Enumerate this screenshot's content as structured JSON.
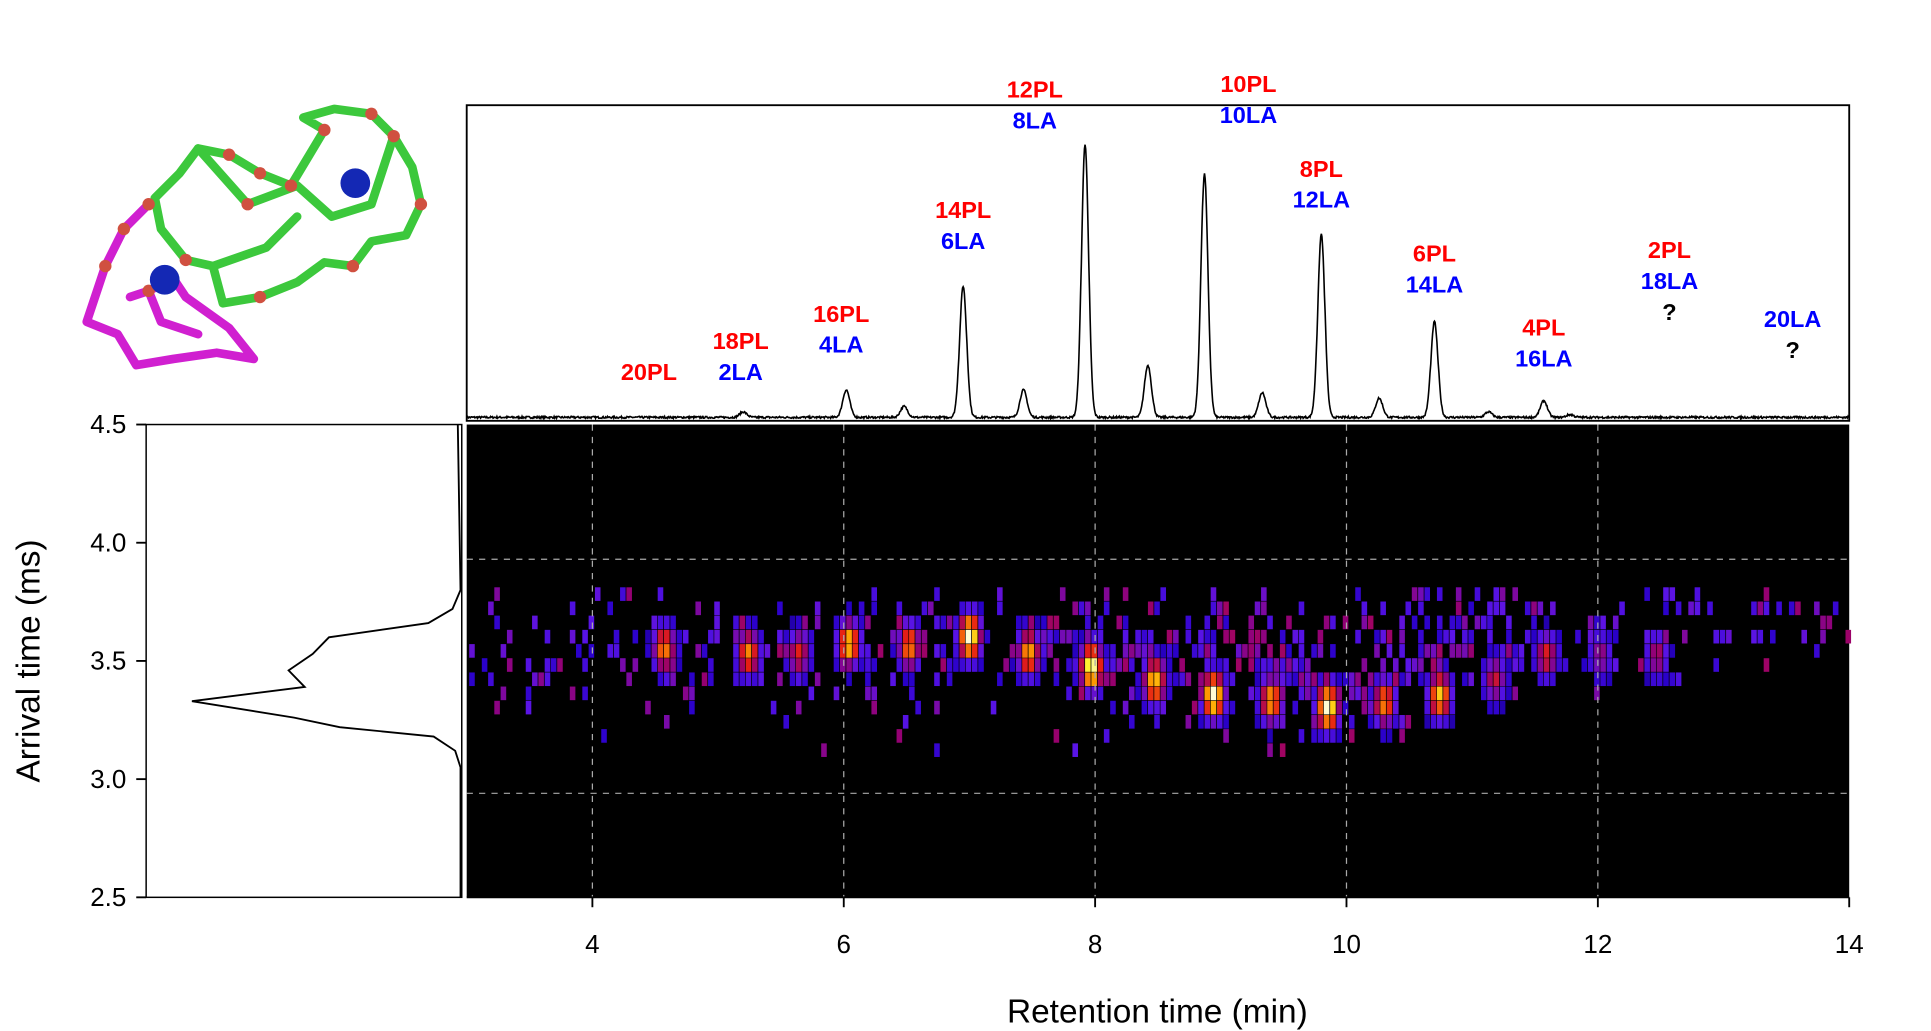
{
  "colors": {
    "pl": "#ff0000",
    "la": "#0000ff",
    "unknown": "#000000",
    "heatmap_bg": "#000000"
  },
  "chart_data": [
    {
      "type": "line",
      "panel": "top chromatogram",
      "xlim": [
        3,
        14
      ],
      "ylim": [
        0,
        100
      ],
      "x_unit": "min",
      "peaks": [
        {
          "rt": 5.2,
          "intensity": 2
        },
        {
          "rt": 6.02,
          "intensity": 10
        },
        {
          "rt": 6.48,
          "intensity": 4
        },
        {
          "rt": 6.95,
          "intensity": 48
        },
        {
          "rt": 7.43,
          "intensity": 10
        },
        {
          "rt": 7.92,
          "intensity": 100
        },
        {
          "rt": 8.42,
          "intensity": 19
        },
        {
          "rt": 8.87,
          "intensity": 89
        },
        {
          "rt": 9.33,
          "intensity": 9
        },
        {
          "rt": 9.8,
          "intensity": 67
        },
        {
          "rt": 10.26,
          "intensity": 7
        },
        {
          "rt": 10.7,
          "intensity": 35
        },
        {
          "rt": 11.13,
          "intensity": 2
        },
        {
          "rt": 11.57,
          "intensity": 6
        },
        {
          "rt": 11.78,
          "intensity": 1
        }
      ],
      "annotations": [
        {
          "rt": 4.45,
          "level": 14,
          "pl": "20PL",
          "la": "",
          "q": ""
        },
        {
          "rt": 5.18,
          "level": 14,
          "pl": "18PL",
          "la": "2LA",
          "q": ""
        },
        {
          "rt": 5.98,
          "level": 24,
          "pl": "16PL",
          "la": "4LA",
          "q": ""
        },
        {
          "rt": 6.95,
          "level": 62,
          "pl": "14PL",
          "la": "6LA",
          "q": ""
        },
        {
          "rt": 7.52,
          "level": 106,
          "pl": "12PL",
          "la": "8LA",
          "q": ""
        },
        {
          "rt": 9.22,
          "level": 108,
          "pl": "10PL",
          "la": "10LA",
          "q": ""
        },
        {
          "rt": 9.8,
          "level": 77,
          "pl": "8PL",
          "la": "12LA",
          "q": ""
        },
        {
          "rt": 10.7,
          "level": 46,
          "pl": "6PL",
          "la": "14LA",
          "q": ""
        },
        {
          "rt": 11.57,
          "level": 19,
          "pl": "4PL",
          "la": "16LA",
          "q": ""
        },
        {
          "rt": 12.57,
          "level": 36,
          "pl": "2PL",
          "la": "18LA",
          "q": "?"
        },
        {
          "rt": 13.55,
          "level": 22,
          "pl": "",
          "la": "20LA",
          "q": "?"
        }
      ]
    },
    {
      "type": "heatmap",
      "panel": "2D retention time vs arrival time",
      "xlabel": "Retention time (min)",
      "ylabel": "Arrival time (ms)",
      "xlim": [
        3,
        14
      ],
      "ylim": [
        2.5,
        4.5
      ],
      "xticks": [
        "4",
        "6",
        "8",
        "10",
        "12",
        "14"
      ],
      "yticks": [
        "2.5",
        "3.0",
        "3.5",
        "4.0",
        "4.5"
      ],
      "grid_x": [
        4,
        6,
        8,
        10,
        12
      ],
      "grid_y": [
        2.94,
        3.93
      ],
      "colormap": "black-blue-purple-red-yellow-white",
      "spots": [
        {
          "rt": 4.55,
          "drift": 3.55,
          "intensity": 0.75
        },
        {
          "rt": 5.22,
          "drift": 3.53,
          "intensity": 0.75
        },
        {
          "rt": 5.62,
          "drift": 3.53,
          "intensity": 0.6
        },
        {
          "rt": 6.02,
          "drift": 3.57,
          "intensity": 0.85
        },
        {
          "rt": 6.5,
          "drift": 3.56,
          "intensity": 0.75
        },
        {
          "rt": 6.98,
          "drift": 3.6,
          "intensity": 1.0
        },
        {
          "rt": 7.45,
          "drift": 3.53,
          "intensity": 0.8
        },
        {
          "rt": 7.95,
          "drift": 3.47,
          "intensity": 1.0
        },
        {
          "rt": 8.45,
          "drift": 3.41,
          "intensity": 0.85
        },
        {
          "rt": 8.92,
          "drift": 3.35,
          "intensity": 1.0
        },
        {
          "rt": 9.38,
          "drift": 3.33,
          "intensity": 0.8
        },
        {
          "rt": 9.83,
          "drift": 3.3,
          "intensity": 1.0
        },
        {
          "rt": 10.28,
          "drift": 3.32,
          "intensity": 0.75
        },
        {
          "rt": 10.72,
          "drift": 3.35,
          "intensity": 0.85
        },
        {
          "rt": 11.16,
          "drift": 3.42,
          "intensity": 0.55
        },
        {
          "rt": 11.57,
          "drift": 3.52,
          "intensity": 0.6
        },
        {
          "rt": 12.0,
          "drift": 3.52,
          "intensity": 0.45
        },
        {
          "rt": 12.45,
          "drift": 3.52,
          "intensity": 0.5
        }
      ]
    },
    {
      "type": "line",
      "panel": "left mobilogram",
      "ylim": [
        2.5,
        4.5
      ],
      "points": [
        {
          "drift": 2.5,
          "intensity": 0
        },
        {
          "drift": 3.05,
          "intensity": 0
        },
        {
          "drift": 3.12,
          "intensity": 0.02
        },
        {
          "drift": 3.18,
          "intensity": 0.1
        },
        {
          "drift": 3.22,
          "intensity": 0.45
        },
        {
          "drift": 3.26,
          "intensity": 0.62
        },
        {
          "drift": 3.33,
          "intensity": 1.0
        },
        {
          "drift": 3.39,
          "intensity": 0.58
        },
        {
          "drift": 3.46,
          "intensity": 0.64
        },
        {
          "drift": 3.53,
          "intensity": 0.55
        },
        {
          "drift": 3.6,
          "intensity": 0.49
        },
        {
          "drift": 3.66,
          "intensity": 0.12
        },
        {
          "drift": 3.72,
          "intensity": 0.03
        },
        {
          "drift": 3.8,
          "intensity": 0.0
        },
        {
          "drift": 4.5,
          "intensity": 0.01
        }
      ]
    }
  ]
}
